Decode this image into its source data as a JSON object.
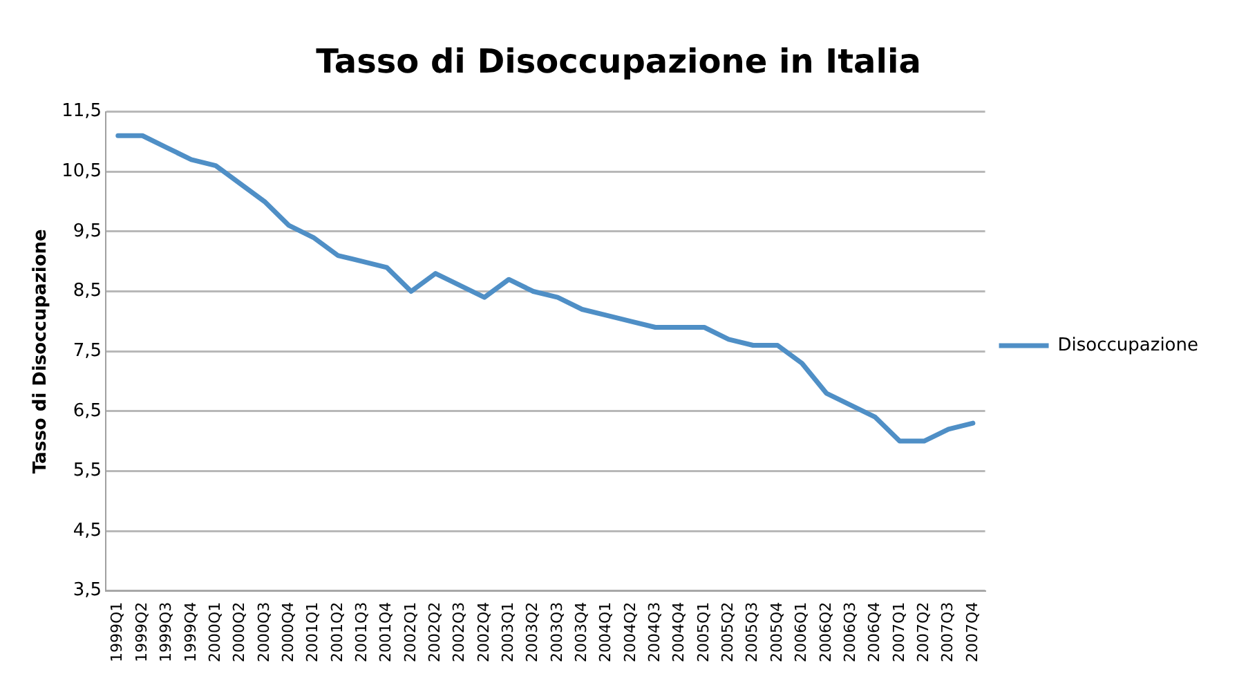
{
  "chart_data": {
    "type": "line",
    "title": "Tasso di Disoccupazione in Italia",
    "ylabel": "Tasso di Disoccupazione",
    "categories": [
      "1999Q1",
      "1999Q2",
      "1999Q3",
      "1999Q4",
      "2000Q1",
      "2000Q2",
      "2000Q3",
      "2000Q4",
      "2001Q1",
      "2001Q2",
      "2001Q3",
      "2001Q4",
      "2002Q1",
      "2002Q2",
      "2002Q3",
      "2002Q4",
      "2003Q1",
      "2003Q2",
      "2003Q3",
      "2003Q4",
      "2004Q1",
      "2004Q2",
      "2004Q3",
      "2004Q4",
      "2005Q1",
      "2005Q2",
      "2005Q3",
      "2005Q4",
      "2006Q1",
      "2006Q2",
      "2006Q3",
      "2006Q4",
      "2007Q1",
      "2007Q2",
      "2007Q3",
      "2007Q4"
    ],
    "series": [
      {
        "name": "Disoccupazione",
        "color": "#4f8fc6",
        "values": [
          11.1,
          11.1,
          10.9,
          10.7,
          10.6,
          10.3,
          10.0,
          9.6,
          9.4,
          9.1,
          9.0,
          8.9,
          8.5,
          8.8,
          8.6,
          8.4,
          8.7,
          8.5,
          8.4,
          8.2,
          8.1,
          8.0,
          7.9,
          7.9,
          7.9,
          7.7,
          7.6,
          7.6,
          7.3,
          6.8,
          6.6,
          6.4,
          6.0,
          6.0,
          6.2,
          6.3
        ]
      }
    ],
    "ylim": [
      3.5,
      11.5
    ],
    "yticks": [
      {
        "value": 3.5,
        "label": "3,5"
      },
      {
        "value": 4.5,
        "label": "4,5"
      },
      {
        "value": 5.5,
        "label": "5,5"
      },
      {
        "value": 6.5,
        "label": "6,5"
      },
      {
        "value": 7.5,
        "label": "7,5"
      },
      {
        "value": 8.5,
        "label": "8,5"
      },
      {
        "value": 9.5,
        "label": "9,5"
      },
      {
        "value": 10.5,
        "label": "10,5"
      },
      {
        "value": 11.5,
        "label": "11,5"
      }
    ],
    "grid": "y",
    "legend": "right",
    "marker": "none",
    "line_style": "solid"
  }
}
